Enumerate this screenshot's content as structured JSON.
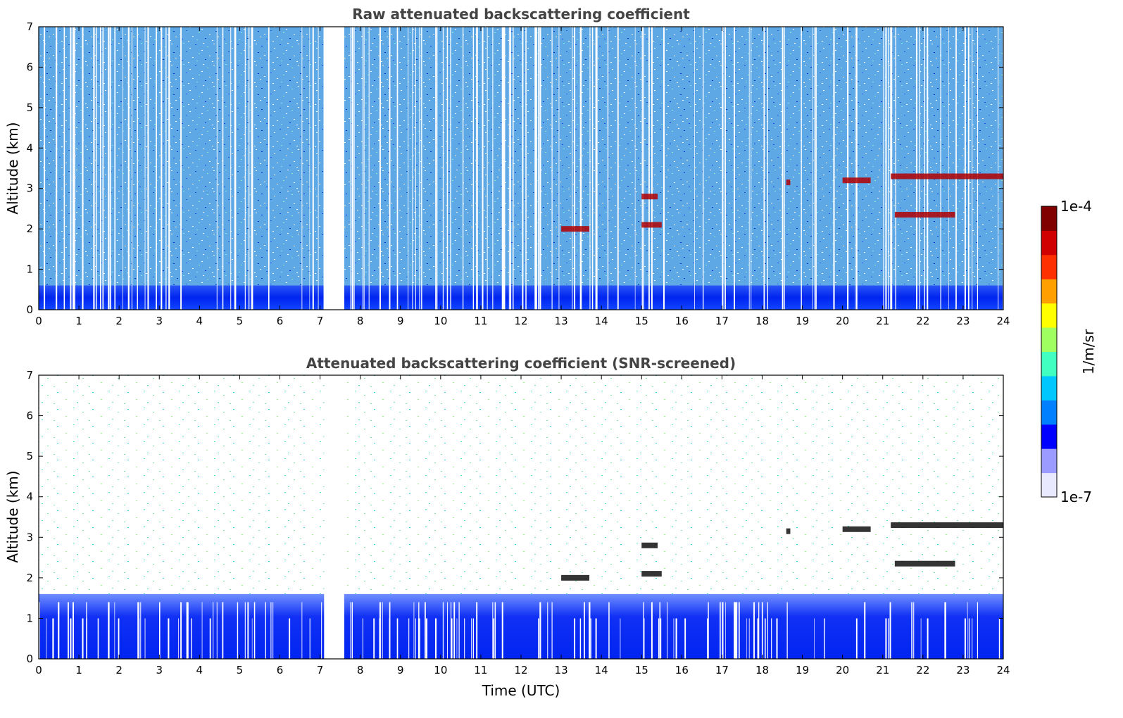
{
  "chart_data": [
    {
      "type": "heatmap",
      "title": "Raw attenuated backscattering coefficient",
      "xlabel": "",
      "ylabel": "Altitude (km)",
      "xlim": [
        0,
        24
      ],
      "ylim": [
        0,
        7
      ],
      "x_ticks": [
        "0",
        "1",
        "2",
        "3",
        "4",
        "5",
        "6",
        "7",
        "8",
        "9",
        "10",
        "11",
        "12",
        "13",
        "14",
        "15",
        "16",
        "17",
        "18",
        "19",
        "20",
        "21",
        "22",
        "23",
        "24"
      ],
      "y_ticks": [
        "0",
        "1",
        "2",
        "3",
        "4",
        "5",
        "6",
        "7"
      ],
      "data_gap_hours": [
        7.1,
        7.6
      ],
      "boundary_layer_top_km": 0.6,
      "cloud_features": [
        {
          "t_start": 13.0,
          "t_end": 13.7,
          "alt_km": 2.0
        },
        {
          "t_start": 15.0,
          "t_end": 15.5,
          "alt_km": 2.1
        },
        {
          "t_start": 15.0,
          "t_end": 15.4,
          "alt_km": 2.8
        },
        {
          "t_start": 18.6,
          "t_end": 18.7,
          "alt_km": 3.15
        },
        {
          "t_start": 20.0,
          "t_end": 20.7,
          "alt_km": 3.2
        },
        {
          "t_start": 21.2,
          "t_end": 24.0,
          "alt_km": 3.3
        },
        {
          "t_start": 21.3,
          "t_end": 22.8,
          "alt_km": 2.35
        }
      ]
    },
    {
      "type": "heatmap",
      "title": "Attenuated backscattering coefficient (SNR-screened)",
      "xlabel": "Time (UTC)",
      "ylabel": "Altitude (km)",
      "xlim": [
        0,
        24
      ],
      "ylim": [
        0,
        7
      ],
      "x_ticks": [
        "0",
        "1",
        "2",
        "3",
        "4",
        "5",
        "6",
        "7",
        "8",
        "9",
        "10",
        "11",
        "12",
        "13",
        "14",
        "15",
        "16",
        "17",
        "18",
        "19",
        "20",
        "21",
        "22",
        "23",
        "24"
      ],
      "y_ticks": [
        "0",
        "1",
        "2",
        "3",
        "4",
        "5",
        "6",
        "7"
      ],
      "data_gap_hours": [
        7.1,
        7.6
      ],
      "screened_top_km": 1.6
    }
  ],
  "colorbar": {
    "label": "1/m/sr",
    "max_label": "1e-4",
    "min_label": "1e-7",
    "colors": [
      "#e8e8ff",
      "#9b9bff",
      "#0000ff",
      "#0080ff",
      "#00c8ff",
      "#40ffc0",
      "#a0ff60",
      "#ffff00",
      "#ffa000",
      "#ff3000",
      "#d00000",
      "#800000"
    ]
  }
}
